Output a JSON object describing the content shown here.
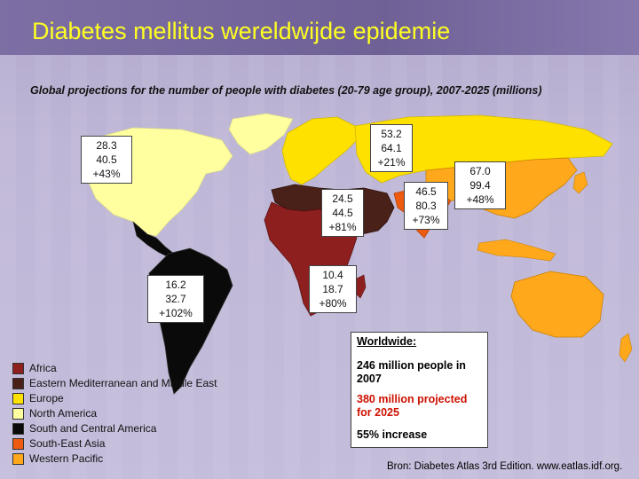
{
  "title": "Diabetes mellitus wereldwijde epidemie",
  "subtitle": "Global projections for the number of people with diabetes (20-79 age group), 2007-2025 (millions)",
  "colors": {
    "africa": "#8e1f1f",
    "eastern_mediterranean": "#4a2118",
    "europe": "#ffe100",
    "north_america": "#ffffa0",
    "south_central_america": "#0a0a0a",
    "south_east_asia": "#ee5a0f",
    "western_pacific": "#ffa81c",
    "title_text": "#ffff22",
    "highlight_text": "#cc1100"
  },
  "regions": [
    {
      "key": "north_america",
      "v2007": "28.3",
      "v2025": "40.5",
      "change": "+43%"
    },
    {
      "key": "europe",
      "v2007": "53.2",
      "v2025": "64.1",
      "change": "+21%"
    },
    {
      "key": "eastern_mediterranean",
      "v2007": "24.5",
      "v2025": "44.5",
      "change": "+81%"
    },
    {
      "key": "south_east_asia",
      "v2007": "46.5",
      "v2025": "80.3",
      "change": "+73%"
    },
    {
      "key": "western_pacific",
      "v2007": "67.0",
      "v2025": "99.4",
      "change": "+48%"
    },
    {
      "key": "south_central_america",
      "v2007": "16.2",
      "v2025": "32.7",
      "change": "+102%"
    },
    {
      "key": "africa",
      "v2007": "10.4",
      "v2025": "18.7",
      "change": "+80%"
    }
  ],
  "legend": [
    {
      "label": "Africa",
      "color": "#8e1f1f"
    },
    {
      "label": "Eastern Mediterranean and Middle East",
      "color": "#4a2118"
    },
    {
      "label": "Europe",
      "color": "#ffe100"
    },
    {
      "label": "North America",
      "color": "#ffffa0"
    },
    {
      "label": "South and Central America",
      "color": "#0a0a0a"
    },
    {
      "label": "South-East Asia",
      "color": "#ee5a0f"
    },
    {
      "label": "Western Pacific",
      "color": "#ffa81c"
    }
  ],
  "worldwide": {
    "heading": "Worldwide:",
    "line1": "246 million people in 2007",
    "line2": "380 million projected for 2025",
    "line3": "55% increase"
  },
  "source": "Bron: Diabetes Atlas 3rd Edition. www.eatlas.idf.org."
}
